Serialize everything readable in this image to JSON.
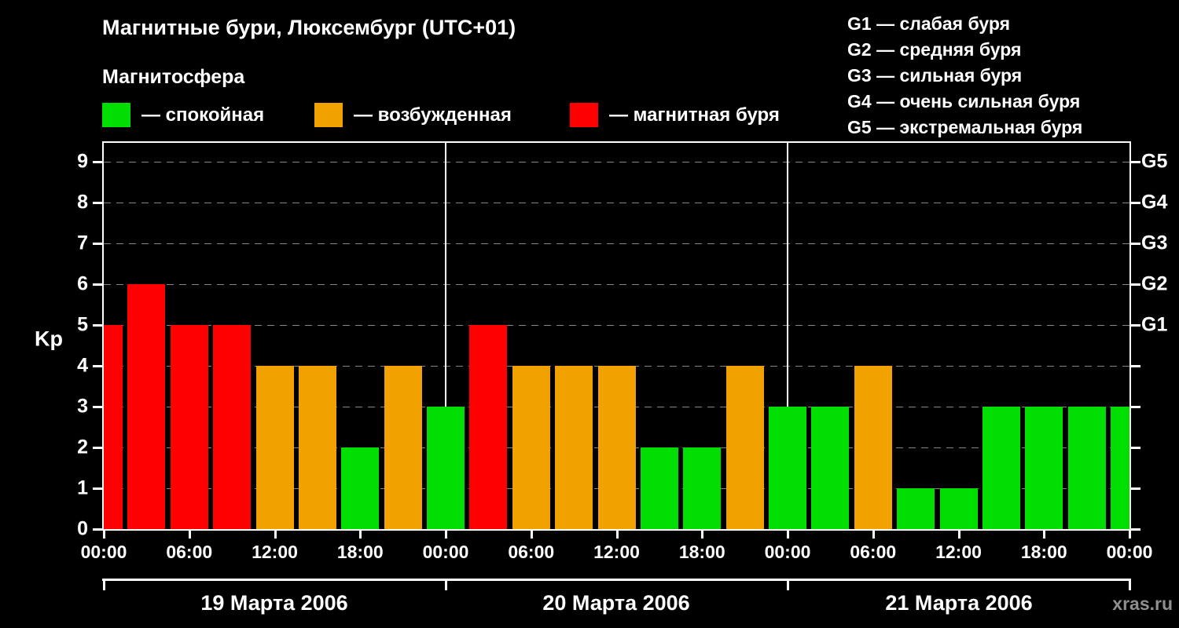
{
  "header": {
    "title": "Магнитные бури, Люксембург (UTC+01)",
    "subtitle": "Магнитосфера"
  },
  "status_legend": {
    "items": [
      {
        "name": "quiet",
        "label": "— спокойная",
        "color": "#00dd00"
      },
      {
        "name": "unsettled",
        "label": "— возбужденная",
        "color": "#f2a200"
      },
      {
        "name": "storm",
        "label": "— магнитная буря",
        "color": "#ff0000"
      }
    ]
  },
  "g_scale_legend": {
    "items": [
      "G1 — слабая буря",
      "G2 — средняя буря",
      "G3 — сильная буря",
      "G4 — очень сильная буря",
      "G5 — экстремальная буря"
    ]
  },
  "watermark": "xras.ru",
  "chart_data": {
    "type": "bar",
    "title": "Магнитные бури, Люксембург (UTC+01)",
    "xlabel": "",
    "ylabel": "Kp",
    "ylim": [
      0,
      9
    ],
    "yticks": [
      0,
      1,
      2,
      3,
      4,
      5,
      6,
      7,
      8,
      9
    ],
    "grid": "dashed horizontal",
    "right_axis": [
      {
        "label": "G1",
        "kp": 5
      },
      {
        "label": "G2",
        "kp": 6
      },
      {
        "label": "G3",
        "kp": 7
      },
      {
        "label": "G4",
        "kp": 8
      },
      {
        "label": "G5",
        "kp": 9
      }
    ],
    "x_hours_total": 72,
    "x_tick_interval_hours": 6,
    "x_tick_labels": [
      "00:00",
      "06:00",
      "12:00",
      "18:00",
      "00:00",
      "06:00",
      "12:00",
      "18:00",
      "00:00",
      "06:00",
      "12:00",
      "18:00",
      "00:00"
    ],
    "days": [
      {
        "label": "19 Марта 2006",
        "start_hour": 0,
        "end_hour": 24
      },
      {
        "label": "20 Марта 2006",
        "start_hour": 24,
        "end_hour": 48
      },
      {
        "label": "21 Марта 2006",
        "start_hour": 48,
        "end_hour": 72
      }
    ],
    "color_map": {
      "quiet": "#00dd00",
      "unsettled": "#f2a200",
      "storm": "#ff0000"
    },
    "bars": [
      {
        "center_hour": 0,
        "kp": 5,
        "status": "storm"
      },
      {
        "center_hour": 3,
        "kp": 6,
        "status": "storm"
      },
      {
        "center_hour": 6,
        "kp": 5,
        "status": "storm"
      },
      {
        "center_hour": 9,
        "kp": 5,
        "status": "storm"
      },
      {
        "center_hour": 12,
        "kp": 4,
        "status": "unsettled"
      },
      {
        "center_hour": 15,
        "kp": 4,
        "status": "unsettled"
      },
      {
        "center_hour": 18,
        "kp": 2,
        "status": "quiet"
      },
      {
        "center_hour": 21,
        "kp": 4,
        "status": "unsettled"
      },
      {
        "center_hour": 24,
        "kp": 3,
        "status": "quiet"
      },
      {
        "center_hour": 27,
        "kp": 5,
        "status": "storm"
      },
      {
        "center_hour": 30,
        "kp": 4,
        "status": "unsettled"
      },
      {
        "center_hour": 33,
        "kp": 4,
        "status": "unsettled"
      },
      {
        "center_hour": 36,
        "kp": 4,
        "status": "unsettled"
      },
      {
        "center_hour": 39,
        "kp": 2,
        "status": "quiet"
      },
      {
        "center_hour": 42,
        "kp": 2,
        "status": "quiet"
      },
      {
        "center_hour": 45,
        "kp": 4,
        "status": "unsettled"
      },
      {
        "center_hour": 48,
        "kp": 3,
        "status": "quiet"
      },
      {
        "center_hour": 51,
        "kp": 3,
        "status": "quiet"
      },
      {
        "center_hour": 54,
        "kp": 4,
        "status": "unsettled"
      },
      {
        "center_hour": 57,
        "kp": 1,
        "status": "quiet"
      },
      {
        "center_hour": 60,
        "kp": 1,
        "status": "quiet"
      },
      {
        "center_hour": 63,
        "kp": 3,
        "status": "quiet"
      },
      {
        "center_hour": 66,
        "kp": 3,
        "status": "quiet"
      },
      {
        "center_hour": 69,
        "kp": 3,
        "status": "quiet"
      },
      {
        "center_hour": 72,
        "kp": 3,
        "status": "quiet"
      }
    ]
  }
}
